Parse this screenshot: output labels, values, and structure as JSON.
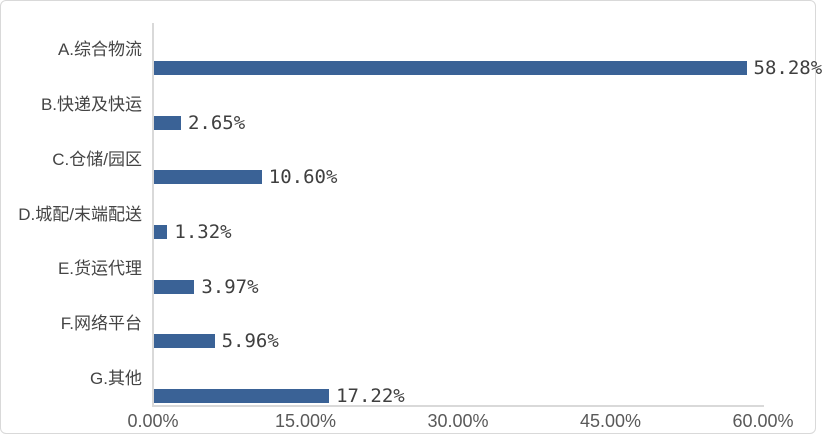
{
  "colors": {
    "bar": "#3a6296",
    "axis_line": "#d9d9d9",
    "category_text": "#444444",
    "value_text": "#3f3f3f",
    "tick_text": "#595959",
    "frame_border": "#d9d9d9",
    "background": "#ffffff"
  },
  "chart_data": {
    "type": "bar",
    "orientation": "horizontal",
    "title": "",
    "xlabel": "",
    "ylabel": "",
    "grid": false,
    "legend": false,
    "categories": [
      "A.综合物流",
      "B.快递及快运",
      "C.仓储/园区",
      "D.城配/末端配送",
      "E.货运代理",
      "F.网络平台",
      "G.其他"
    ],
    "values": [
      58.28,
      2.65,
      10.6,
      1.32,
      3.97,
      5.96,
      17.22
    ],
    "value_labels": [
      "58.28%",
      "2.65%",
      "10.60%",
      "1.32%",
      "3.97%",
      "5.96%",
      "17.22%"
    ],
    "x_ticks": [
      "0.00%",
      "15.00%",
      "30.00%",
      "45.00%",
      "60.00%"
    ],
    "x_tick_values": [
      0,
      15,
      30,
      45,
      60
    ],
    "xlim": [
      0,
      60
    ]
  }
}
